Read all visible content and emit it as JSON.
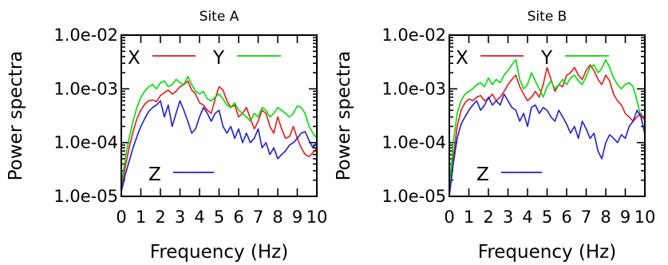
{
  "chart_data": [
    {
      "type": "line",
      "title": "Site A",
      "xlabel": "Frequency (Hz)",
      "ylabel": "Power spectra",
      "xlim": [
        0,
        10
      ],
      "ylim": [
        1e-05,
        0.01
      ],
      "yscale": "log",
      "grid": false,
      "x_ticks": [
        "0",
        "1",
        "2",
        "3",
        "4",
        "5",
        "6",
        "7",
        "8",
        "9",
        "10"
      ],
      "y_ticks": [
        "1.0e-05",
        "1.0e-04",
        "1.0e-03",
        "1.0e-02"
      ],
      "legend": [
        {
          "label": "X",
          "color": "#e41a1c"
        },
        {
          "label": "Y",
          "color": "#00dd00"
        },
        {
          "label": "Z",
          "color": "#1f1fd0"
        }
      ],
      "x": [
        0.0,
        0.2,
        0.4,
        0.6,
        0.8,
        1.0,
        1.2,
        1.4,
        1.6,
        1.8,
        2.0,
        2.2,
        2.4,
        2.6,
        2.8,
        3.0,
        3.2,
        3.4,
        3.6,
        3.8,
        4.0,
        4.2,
        4.4,
        4.6,
        4.8,
        5.0,
        5.2,
        5.4,
        5.6,
        5.8,
        6.0,
        6.2,
        6.4,
        6.6,
        6.8,
        7.0,
        7.2,
        7.4,
        7.6,
        7.8,
        8.0,
        8.2,
        8.4,
        8.6,
        8.8,
        9.0,
        9.2,
        9.4,
        9.6,
        9.8,
        10.0
      ],
      "series": [
        {
          "name": "X",
          "color": "#e41a1c",
          "values": [
            1.4e-05,
            3.5e-05,
            8e-05,
            0.00016,
            0.00028,
            0.0004,
            0.00052,
            0.0006,
            0.00062,
            0.00058,
            0.00075,
            0.00085,
            0.00095,
            0.0008,
            0.0009,
            0.0011,
            0.0012,
            0.0014,
            0.00095,
            0.0008,
            0.00055,
            0.0005,
            0.0004,
            0.00035,
            0.00065,
            0.0011,
            0.00095,
            0.0006,
            0.00045,
            0.0005,
            0.0003,
            0.00035,
            0.00045,
            0.00028,
            0.00018,
            0.00025,
            0.0004,
            0.00035,
            0.0002,
            0.00015,
            0.0003,
            0.00018,
            0.00012,
            0.00013,
            0.0002,
            0.00012,
            8e-05,
            6e-05,
            5.5e-05,
            6.5e-05,
            8e-05
          ]
        },
        {
          "name": "Y",
          "color": "#00dd00",
          "values": [
            1.6e-05,
            5e-05,
            0.00012,
            0.00025,
            0.00045,
            0.0007,
            0.0009,
            0.0011,
            0.0012,
            0.001,
            0.0013,
            0.0014,
            0.0011,
            0.0012,
            0.0015,
            0.0013,
            0.0012,
            0.0017,
            0.0012,
            0.0009,
            0.0008,
            0.0009,
            0.00065,
            0.0006,
            0.0007,
            0.0008,
            0.00065,
            0.0005,
            0.00045,
            0.00055,
            0.0004,
            0.00035,
            0.0003,
            0.00025,
            0.00035,
            0.0003,
            0.00045,
            0.0004,
            0.0003,
            0.00035,
            0.00045,
            0.0004,
            0.00035,
            0.0003,
            0.00035,
            0.00048,
            0.00045,
            0.00035,
            0.0002,
            0.00015,
            0.00012
          ]
        },
        {
          "name": "Z",
          "color": "#1f1fd0",
          "values": [
            1.2e-05,
            2.5e-05,
            4.5e-05,
            8e-05,
            0.00013,
            0.0002,
            0.00028,
            0.00038,
            0.00045,
            0.0005,
            0.0006,
            0.0003,
            0.0005,
            0.0002,
            0.00035,
            0.0006,
            0.0004,
            0.00025,
            0.00015,
            0.00018,
            0.0003,
            0.00045,
            0.00035,
            0.00025,
            0.00035,
            0.0004,
            0.0002,
            0.00015,
            0.0002,
            0.00012,
            0.00018,
            0.0001,
            0.00015,
            0.0001,
            0.00012,
            0.00018,
            8e-05,
            0.0001,
            6e-05,
            8e-05,
            5e-05,
            6e-05,
            7e-05,
            9e-05,
            0.0001,
            0.00012,
            0.00015,
            0.00016,
            0.00011,
            8e-05,
            0.0001
          ]
        }
      ]
    },
    {
      "type": "line",
      "title": "Site B",
      "xlabel": "Frequency (Hz)",
      "ylabel": "Power spectra",
      "xlim": [
        0,
        10
      ],
      "ylim": [
        1e-05,
        0.01
      ],
      "yscale": "log",
      "grid": false,
      "x_ticks": [
        "0",
        "1",
        "2",
        "3",
        "4",
        "5",
        "6",
        "7",
        "8",
        "9",
        "10"
      ],
      "y_ticks": [
        "1.0e-05",
        "1.0e-04",
        "1.0e-03",
        "1.0e-02"
      ],
      "legend": [
        {
          "label": "X",
          "color": "#e41a1c"
        },
        {
          "label": "Y",
          "color": "#00dd00"
        },
        {
          "label": "Z",
          "color": "#1f1fd0"
        }
      ],
      "x": [
        0.0,
        0.2,
        0.4,
        0.6,
        0.8,
        1.0,
        1.2,
        1.4,
        1.6,
        1.8,
        2.0,
        2.2,
        2.4,
        2.6,
        2.8,
        3.0,
        3.2,
        3.4,
        3.6,
        3.8,
        4.0,
        4.2,
        4.4,
        4.6,
        4.8,
        5.0,
        5.2,
        5.4,
        5.6,
        5.8,
        6.0,
        6.2,
        6.4,
        6.6,
        6.8,
        7.0,
        7.2,
        7.4,
        7.6,
        7.8,
        8.0,
        8.2,
        8.4,
        8.6,
        8.8,
        9.0,
        9.2,
        9.4,
        9.6,
        9.8,
        10.0
      ],
      "series": [
        {
          "name": "X",
          "color": "#e41a1c",
          "values": [
            1.1e-05,
            5e-05,
            0.0002,
            0.0004,
            0.00055,
            0.00065,
            0.0006,
            0.0007,
            0.00075,
            0.0006,
            0.00065,
            0.0008,
            0.0006,
            0.0007,
            0.0009,
            0.0012,
            0.0015,
            0.0018,
            0.0011,
            0.0008,
            0.0006,
            0.0007,
            0.0009,
            0.0007,
            0.0012,
            0.0025,
            0.0015,
            0.0009,
            0.0012,
            0.0011,
            0.0018,
            0.002,
            0.0025,
            0.0018,
            0.0015,
            0.0022,
            0.0028,
            0.0022,
            0.0015,
            0.0012,
            0.0018,
            0.0014,
            0.0008,
            0.0006,
            0.0005,
            0.00035,
            0.0003,
            0.00025,
            0.0003,
            0.00035,
            0.00025
          ]
        },
        {
          "name": "Y",
          "color": "#00dd00",
          "values": [
            1.3e-05,
            0.0001,
            0.00035,
            0.0006,
            0.0008,
            0.0009,
            0.001,
            0.0012,
            0.0013,
            0.0011,
            0.0016,
            0.0012,
            0.0015,
            0.0013,
            0.0018,
            0.0022,
            0.0028,
            0.0035,
            0.0015,
            0.001,
            0.0012,
            0.002,
            0.0014,
            0.001,
            0.0007,
            0.0011,
            0.0014,
            0.001,
            0.0012,
            0.0015,
            0.0012,
            0.0016,
            0.0018,
            0.0014,
            0.0012,
            0.0017,
            0.0025,
            0.0028,
            0.002,
            0.0024,
            0.0035,
            0.0025,
            0.0016,
            0.0012,
            0.001,
            0.0012,
            0.0013,
            0.0011,
            0.0006,
            0.0003,
            0.00014
          ]
        },
        {
          "name": "Z",
          "color": "#1f1fd0",
          "values": [
            1e-05,
            4e-05,
            0.00012,
            0.00022,
            0.0003,
            0.0004,
            0.0005,
            0.0006,
            0.0004,
            0.0005,
            0.0007,
            0.0005,
            0.0006,
            0.0005,
            0.0008,
            0.0006,
            0.00045,
            0.0004,
            0.00025,
            0.00035,
            0.0002,
            0.00045,
            0.0005,
            0.00035,
            0.00045,
            0.0004,
            0.0003,
            0.00025,
            0.0004,
            0.0003,
            0.00022,
            0.00015,
            0.0002,
            0.00012,
            0.00025,
            0.00018,
            0.00012,
            0.00015,
            7e-05,
            5e-05,
            0.0001,
            0.00014,
            0.00012,
            0.0001,
            0.00014,
            0.00012,
            0.0002,
            0.00025,
            0.0004,
            0.0003,
            0.00015
          ]
        }
      ]
    }
  ]
}
